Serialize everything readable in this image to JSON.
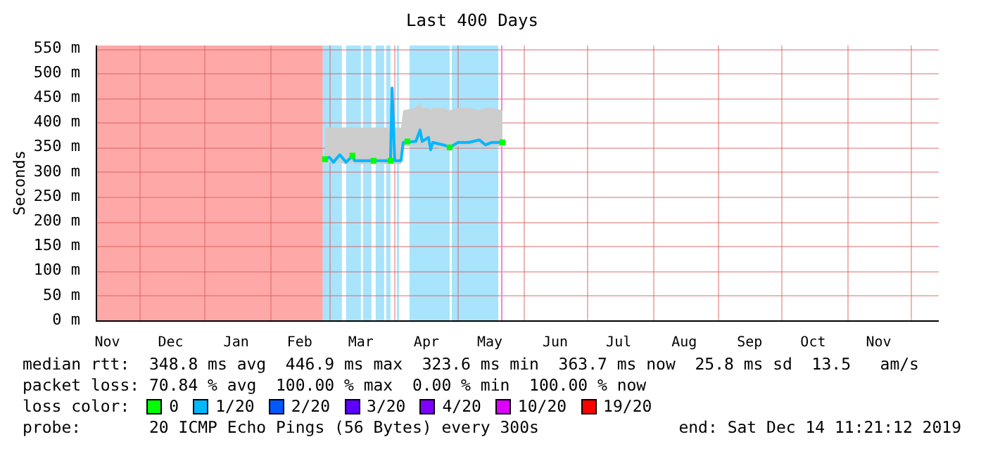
{
  "chart_data": {
    "type": "line",
    "title": "Last 400 Days",
    "ylabel": "Seconds",
    "legend_title": "loss color:",
    "legend": "bottom",
    "grid": true,
    "xlim": [
      "2018-11-10T12:00",
      "2019-12-14T11:21"
    ],
    "xticks": [
      {
        "value": "2018-11-16",
        "label": "Nov"
      },
      {
        "value": "2018-12-01",
        "label": null
      },
      {
        "value": "2018-12-16",
        "label": "Dec"
      },
      {
        "value": "2019-01-01",
        "label": null
      },
      {
        "value": "2019-01-16",
        "label": "Jan"
      },
      {
        "value": "2019-02-01",
        "label": null
      },
      {
        "value": "2019-02-15",
        "label": "Feb"
      },
      {
        "value": "2019-03-01",
        "label": null
      },
      {
        "value": "2019-03-16",
        "label": "Mar"
      },
      {
        "value": "2019-04-01",
        "label": null
      },
      {
        "value": "2019-04-16",
        "label": "Apr"
      },
      {
        "value": "2019-05-01",
        "label": null
      },
      {
        "value": "2019-05-16",
        "label": "May"
      },
      {
        "value": "2019-06-01",
        "label": null
      },
      {
        "value": "2019-06-16",
        "label": "Jun"
      },
      {
        "value": "2019-07-01",
        "label": null
      },
      {
        "value": "2019-07-16",
        "label": "Jul"
      },
      {
        "value": "2019-08-01",
        "label": null
      },
      {
        "value": "2019-08-16",
        "label": "Aug"
      },
      {
        "value": "2019-09-01",
        "label": null
      },
      {
        "value": "2019-09-16",
        "label": "Sep"
      },
      {
        "value": "2019-10-01",
        "label": null
      },
      {
        "value": "2019-10-16",
        "label": "Oct"
      },
      {
        "value": "2019-11-01",
        "label": null
      },
      {
        "value": "2019-11-16",
        "label": "Nov"
      },
      {
        "value": "2019-12-01",
        "label": null
      }
    ],
    "ylim": [
      0,
      556
    ],
    "yticks": [
      {
        "value": 0,
        "label": "0 m"
      },
      {
        "value": 50,
        "label": "50 m"
      },
      {
        "value": 100,
        "label": "100 m"
      },
      {
        "value": 150,
        "label": "150 m"
      },
      {
        "value": 200,
        "label": "200 m"
      },
      {
        "value": 250,
        "label": "250 m"
      },
      {
        "value": 300,
        "label": "300 m"
      },
      {
        "value": 350,
        "label": "350 m"
      },
      {
        "value": 400,
        "label": "400 m"
      },
      {
        "value": 450,
        "label": "450 m"
      },
      {
        "value": 500,
        "label": "500 m"
      },
      {
        "value": 550,
        "label": "550 m"
      }
    ],
    "bands": [
      {
        "axis": "x",
        "from": "2018-11-10T12:00",
        "to": "2019-02-26",
        "color": "#ffa8a8"
      },
      {
        "axis": "x",
        "from": "2019-02-26",
        "to": "2019-03-07",
        "color": "#a8e4fc"
      },
      {
        "axis": "x",
        "from": "2019-03-09",
        "to": "2019-03-16",
        "color": "#a8e4fc"
      },
      {
        "axis": "x",
        "from": "2019-03-17",
        "to": "2019-03-21",
        "color": "#a8e4fc"
      },
      {
        "axis": "x",
        "from": "2019-03-23",
        "to": "2019-03-27",
        "color": "#a8e4fc"
      },
      {
        "axis": "x",
        "from": "2019-03-28",
        "to": "2019-03-30",
        "color": "#a8e4fc"
      },
      {
        "axis": "x",
        "from": "2019-04-02",
        "to": "2019-04-03",
        "color": "#a8e4fc"
      },
      {
        "axis": "x",
        "from": "2019-04-08",
        "to": "2019-04-27",
        "color": "#a8e4fc"
      },
      {
        "axis": "x",
        "from": "2019-04-28",
        "to": "2019-05-20",
        "color": "#a8e4fc"
      }
    ],
    "ref_lines": [
      {
        "axis": "x",
        "value": "2019-05-21",
        "color": "#f080f0"
      }
    ],
    "series": [
      {
        "name": "0",
        "type": "scatter",
        "color": "#00ff00",
        "x": [
          "2019-02-27",
          "2019-03-12",
          "2019-03-22",
          "2019-03-30",
          "2019-04-07",
          "2019-04-27",
          "2019-05-22"
        ],
        "values": [
          326,
          333,
          323,
          323,
          362,
          350,
          360
        ]
      },
      {
        "name": "1/20",
        "color": "#00b8ff",
        "x": [
          "2019-02-27",
          "2019-03-01",
          "2019-03-03",
          "2019-03-06",
          "2019-03-09",
          "2019-03-12",
          "2019-03-13",
          "2019-03-22",
          "2019-03-30T00:00",
          "2019-03-30T18:00",
          "2019-04-01",
          "2019-04-04",
          "2019-04-05",
          "2019-04-11",
          "2019-04-13",
          "2019-04-14",
          "2019-04-17",
          "2019-04-18",
          "2019-04-19",
          "2019-04-24",
          "2019-04-27",
          "2019-05-01",
          "2019-05-06",
          "2019-05-11",
          "2019-05-14",
          "2019-05-17",
          "2019-05-22"
        ],
        "values": [
          326,
          330,
          320,
          335,
          320,
          333,
          323,
          323,
          323,
          470,
          323,
          323,
          360,
          362,
          385,
          362,
          370,
          345,
          360,
          355,
          350,
          360,
          360,
          365,
          355,
          360,
          360
        ],
        "lower": [
          318,
          320,
          315,
          320,
          315,
          320,
          316,
          316,
          316,
          316,
          316,
          316,
          352,
          352,
          352,
          352,
          352,
          340,
          352,
          345,
          342,
          352,
          352,
          355,
          350,
          352,
          352
        ],
        "upper": [
          390,
          390,
          390,
          390,
          390,
          390,
          390,
          390,
          390,
          470,
          390,
          390,
          425,
          430,
          440,
          430,
          430,
          425,
          430,
          430,
          425,
          430,
          430,
          425,
          430,
          430,
          425
        ]
      },
      {
        "name": "2/20",
        "color": "#0059ff"
      },
      {
        "name": "3/20",
        "color": "#5e00ff"
      },
      {
        "name": "4/20",
        "color": "#7e00ff"
      },
      {
        "name": "10/20",
        "color": "#dd00ff"
      },
      {
        "name": "19/20",
        "color": "#ff0000"
      }
    ],
    "annotations": [
      "median rtt:  348.8 ms avg  446.9 ms max  323.6 ms min  363.7 ms now  25.8 ms sd  13.5   am/s",
      "packet loss: 70.84 % avg  100.00 % max  0.00 % min  100.00 % now",
      "probe:       20 ICMP Echo Pings (56 Bytes) every 300s",
      "end: Sat Dec 14 11:21:12 2019"
    ]
  }
}
